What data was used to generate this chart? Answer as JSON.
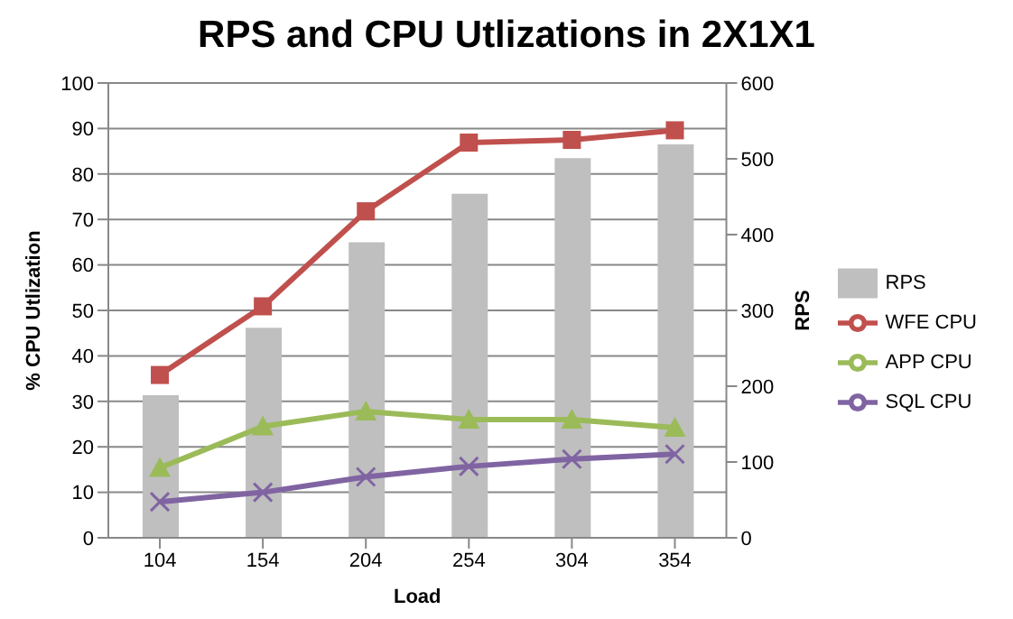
{
  "chart_data": {
    "type": "line",
    "title": "RPS and CPU Utlizations in 2X1X1",
    "xlabel": "Load",
    "ylabel": "% CPU Utlization",
    "y2label": "RPS",
    "categories": [
      "104",
      "154",
      "204",
      "254",
      "304",
      "354"
    ],
    "series": [
      {
        "name": "RPS",
        "type": "bar",
        "axis": "y2",
        "color": "#bfbfbf",
        "values": [
          188,
          277,
          390,
          454,
          501,
          519
        ]
      },
      {
        "name": "WFE CPU",
        "marker": "square",
        "color": "#c0504d",
        "values": [
          35.8,
          50.9,
          71.8,
          86.9,
          87.5,
          89.6
        ]
      },
      {
        "name": "APP CPU",
        "marker": "triangle",
        "color": "#9bbb59",
        "values": [
          15.4,
          24.5,
          27.8,
          26,
          26,
          24.2
        ]
      },
      {
        "name": "SQL CPU",
        "marker": "cross",
        "color": "#8064a2",
        "values": [
          7.9,
          10,
          13.4,
          15.7,
          17.3,
          18.4
        ]
      }
    ],
    "ylim": [
      0,
      100
    ],
    "yticks": [
      0,
      10,
      20,
      30,
      40,
      50,
      60,
      70,
      80,
      90,
      100
    ],
    "y2lim": [
      0,
      600
    ],
    "y2ticks": [
      0,
      100,
      200,
      300,
      400,
      500,
      600
    ],
    "grid": "y",
    "legend": "right"
  }
}
